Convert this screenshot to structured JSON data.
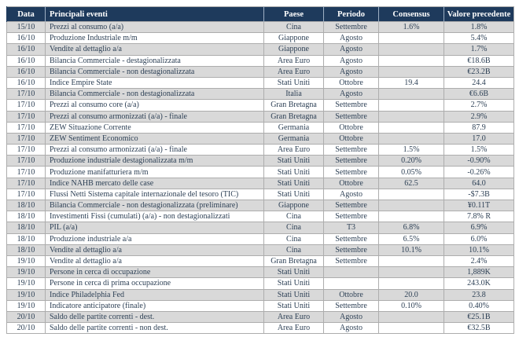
{
  "colors": {
    "header_bg": "#1e3a5c",
    "header_text": "#ffffff",
    "row_alt_bg": "#d9d9d9",
    "row_bg": "#ffffff",
    "text": "#2e4156",
    "grid": "#adadad"
  },
  "table": {
    "columns": [
      {
        "key": "data",
        "label": "Data"
      },
      {
        "key": "event",
        "label": "Principali eventi"
      },
      {
        "key": "country",
        "label": "Paese"
      },
      {
        "key": "period",
        "label": "Periodo"
      },
      {
        "key": "consensus",
        "label": "Consensus"
      },
      {
        "key": "previous",
        "label": "Valore precedente"
      }
    ],
    "rows": [
      [
        "15/10",
        "Prezzi al consumo  (a/a)",
        "Cina",
        "Settembre",
        "1.6%",
        "1.8%"
      ],
      [
        "16/10",
        "Produzione Industriale m/m",
        "Giappone",
        "Agosto",
        "",
        "5.4%"
      ],
      [
        "16/10",
        "Vendite al dettaglio a/a",
        "Giappone",
        "Agosto",
        "",
        "1.7%"
      ],
      [
        "16/10",
        "Bilancia Commerciale - destagionalizzata",
        "Area Euro",
        "Agosto",
        "",
        "€18.6B"
      ],
      [
        "16/10",
        "Bilancia Commerciale - non destagionalizzata",
        "Area Euro",
        "Agosto",
        "",
        "€23.2B"
      ],
      [
        "16/10",
        "Indice Empire State",
        "Stati Uniti",
        "Ottobre",
        "19.4",
        "24.4"
      ],
      [
        "17/10",
        "Bilancia Commerciale - non destagionalizzata",
        "Italia",
        "Agosto",
        "",
        "€6.6B"
      ],
      [
        "17/10",
        "Prezzi al consumo core (a/a)",
        "Gran Bretagna",
        "Settembre",
        "",
        "2.7%"
      ],
      [
        "17/10",
        "Prezzi al consumo armonizzati (a/a) - finale",
        "Gran Bretagna",
        "Settembre",
        "",
        "2.9%"
      ],
      [
        "17/10",
        "ZEW Situazione Corrente",
        "Germania",
        "Ottobre",
        "",
        "87.9"
      ],
      [
        "17/10",
        "ZEW Sentiment Economico",
        "Germania",
        "Ottobre",
        "",
        "17.0"
      ],
      [
        "17/10",
        "Prezzi al consumo armonizzati (a/a) - finale",
        "Area Euro",
        "Settembre",
        "1.5%",
        "1.5%"
      ],
      [
        "17/10",
        "Produzione industriale destagionalizzata m/m",
        "Stati Uniti",
        "Settembre",
        "0.20%",
        "-0.90%"
      ],
      [
        "17/10",
        "Produzione manifatturiera m/m",
        "Stati Uniti",
        "Settembre",
        "0.05%",
        "-0.26%"
      ],
      [
        "17/10",
        "Indice NAHB mercato delle case",
        "Stati Uniti",
        "Ottobre",
        "62.5",
        "64.0"
      ],
      [
        "17/10",
        "Flussi Netti Sistema capitale internazionale del tesoro (TIC)",
        "Stati Uniti",
        "Agosto",
        "",
        "-$7.3B"
      ],
      [
        "18/10",
        "Bilancia Commerciale -  non destagionalizzata (preliminare)",
        "Giappone",
        "Settembre",
        "",
        "¥0.11T"
      ],
      [
        "18/10",
        "Investimenti Fissi (cumulati) (a/a) - non destagionalizzati",
        "Cina",
        "Settembre",
        "",
        "7.8% R"
      ],
      [
        "18/10",
        "PIL (a/a)",
        "Cina",
        "T3",
        "6.8%",
        "6.9%"
      ],
      [
        "18/10",
        "Produzione industriale a/a",
        "Cina",
        "Settembre",
        "6.5%",
        "6.0%"
      ],
      [
        "18/10",
        "Vendite al dettaglio a/a",
        "Cina",
        "Settembre",
        "10.1%",
        "10.1%"
      ],
      [
        "19/10",
        "Vendite al dettaglio a/a",
        "Gran Bretagna",
        "Settembre",
        "",
        "2.4%"
      ],
      [
        "19/10",
        "Persone in cerca di occupazione",
        "Stati Uniti",
        "",
        "",
        "1,889K"
      ],
      [
        "19/10",
        "Persone in cerca di prima occupazione",
        "Stati Uniti",
        "",
        "",
        "243.0K"
      ],
      [
        "19/10",
        "Indice Philadelphia Fed",
        "Stati Uniti",
        "Ottobre",
        "20.0",
        "23.8"
      ],
      [
        "19/10",
        "Indicatore anticipatore (finale)",
        "Stati Uniti",
        "Settembre",
        "0.10%",
        "0.40%"
      ],
      [
        "20/10",
        "Saldo delle partite correnti - dest.",
        "Area Euro",
        "Agosto",
        "",
        "€25.1B"
      ],
      [
        "20/10",
        "Saldo delle partite correnti -  non dest.",
        "Area Euro",
        "Agosto",
        "",
        "€32.5B"
      ]
    ]
  }
}
